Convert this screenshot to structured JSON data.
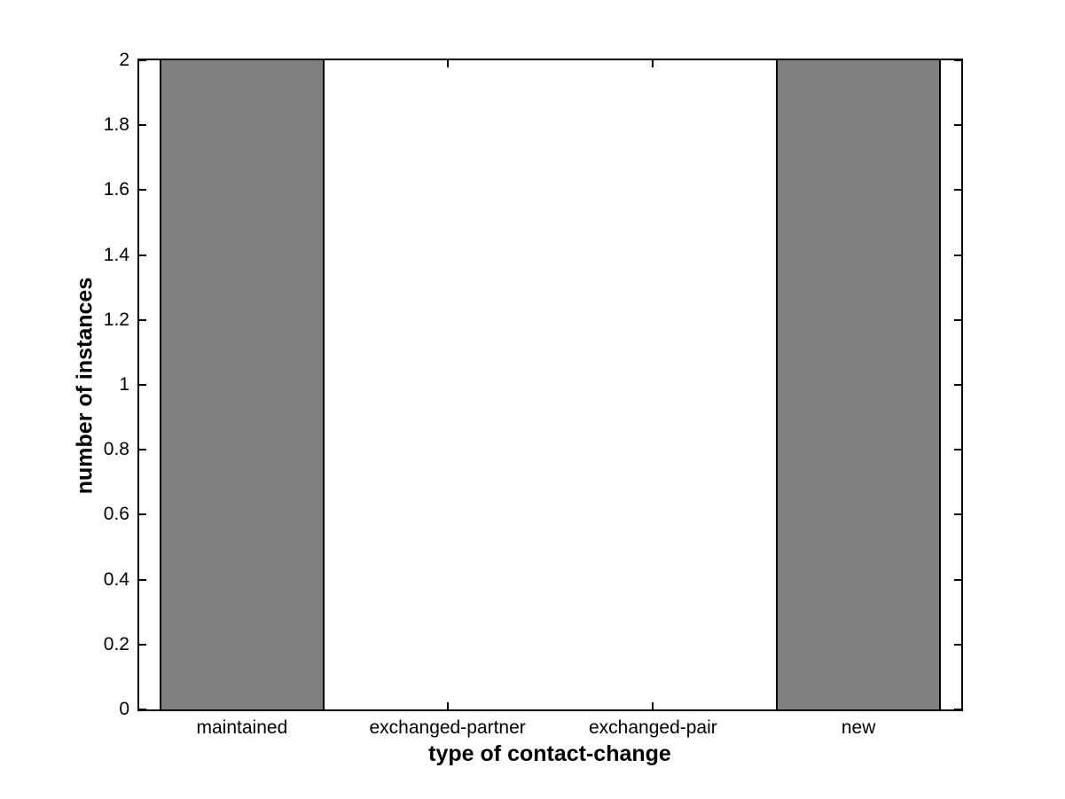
{
  "chart_data": {
    "type": "bar",
    "categories": [
      "maintained",
      "exchanged-partner",
      "exchanged-pair",
      "new"
    ],
    "values": [
      2,
      0,
      0,
      2
    ],
    "title": "",
    "xlabel": "type of contact-change",
    "ylabel": "number of instances",
    "ylim": [
      0,
      2
    ],
    "ytick_step": 0.2,
    "ytick_labels": [
      "0",
      "0.2",
      "0.4",
      "0.6",
      "0.8",
      "1",
      "1.2",
      "1.4",
      "1.6",
      "1.8",
      "2"
    ],
    "bar_width_fraction": 0.8,
    "bar_color": "#808080",
    "bar_edge_color": "#000000",
    "axes_color": "#000000",
    "background_color": "#ffffff",
    "grid": false,
    "legend": null,
    "tick_direction": "in",
    "box": true
  }
}
